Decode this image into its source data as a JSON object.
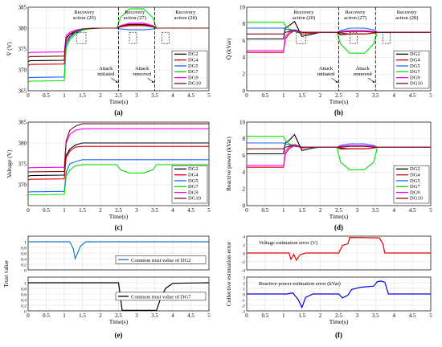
{
  "colors": {
    "DG2": "#000000",
    "DG4": "#e00000",
    "DG5": "#1464ff",
    "DG7": "#00e000",
    "DG9": "#ff00ff",
    "DG10": "#7a1010",
    "trust2": "#1f78c8",
    "trust7": "#000000",
    "verr": "#e00000",
    "qerr": "#0000e0"
  },
  "chart_data": [
    {
      "type": "line",
      "panel_label": "(a)",
      "xlabel": "Time(s)",
      "ylabel": "V̄ (V)",
      "xlim": [
        0,
        5
      ],
      "ylim": [
        365,
        385
      ],
      "xticks": [
        0,
        0.5,
        1,
        1.5,
        2,
        2.5,
        3,
        3.5,
        4,
        4.5,
        5
      ],
      "yticks": [
        365,
        370,
        375,
        380,
        385
      ],
      "grid": true,
      "legend_position": "right",
      "x": [
        0,
        0.05,
        1,
        1.05,
        1.15,
        1.3,
        1.5,
        1.8,
        2,
        2.45,
        2.55,
        2.8,
        3.2,
        3.45,
        3.55,
        3.8,
        4,
        5
      ],
      "series": [
        {
          "name": "DG2",
          "values": [
            372,
            372.2,
            372.3,
            377.5,
            378.5,
            379,
            379.6,
            379.9,
            380,
            380,
            380.5,
            380.9,
            380.9,
            380.5,
            380,
            380,
            380,
            380
          ]
        },
        {
          "name": "DG4",
          "values": [
            371,
            371.3,
            371.4,
            376.8,
            378,
            379,
            379.7,
            380,
            380,
            380,
            380.3,
            380.6,
            380.6,
            380.3,
            380,
            380,
            380,
            380
          ]
        },
        {
          "name": "DG5",
          "values": [
            368,
            368.2,
            368.3,
            376,
            377.7,
            378.9,
            379.7,
            380,
            380,
            380,
            379.8,
            379.6,
            379.6,
            379.8,
            380,
            380,
            380,
            380
          ]
        },
        {
          "name": "DG7",
          "values": [
            367,
            367.3,
            367.4,
            375.2,
            377.2,
            378.5,
            379.5,
            380,
            380,
            380,
            382.5,
            384.6,
            384.6,
            382.5,
            380,
            380,
            380,
            380
          ]
        },
        {
          "name": "DG9",
          "values": [
            374,
            374.2,
            374.3,
            378.2,
            379,
            379.5,
            379.8,
            380,
            380,
            380,
            380.6,
            381.2,
            381.2,
            380.6,
            380,
            380,
            380,
            380
          ]
        },
        {
          "name": "DG10",
          "values": [
            373,
            373.2,
            373.3,
            377.7,
            378.6,
            379.3,
            379.8,
            380,
            380,
            380,
            380.4,
            380.8,
            380.8,
            380.4,
            380,
            380,
            380,
            380
          ]
        }
      ],
      "annotations": [
        "Recovery action (20)",
        "Recovery action (27)",
        "Recovery action (28)",
        "Attack initiated",
        "Attack removed"
      ]
    },
    {
      "type": "line",
      "panel_label": "(b)",
      "xlabel": "Time(s)",
      "ylabel": "Q̄ (kVar)",
      "xlim": [
        0,
        5
      ],
      "ylim": [
        0,
        10
      ],
      "xticks": [
        0,
        0.5,
        1,
        1.5,
        2,
        2.5,
        3,
        3.5,
        4,
        4.5,
        5
      ],
      "yticks": [
        0,
        2,
        4,
        6,
        8,
        10
      ],
      "grid": true,
      "legend_position": "right",
      "x": [
        0,
        0.05,
        1,
        1.05,
        1.15,
        1.3,
        1.5,
        1.8,
        2,
        2.45,
        2.55,
        2.8,
        3.2,
        3.45,
        3.55,
        3.8,
        4,
        5
      ],
      "series": [
        {
          "name": "DG2",
          "values": [
            6.2,
            6.2,
            6.2,
            7.5,
            7.8,
            8.3,
            6.5,
            6.8,
            7,
            7,
            6.7,
            6.8,
            6.8,
            6.9,
            7,
            7,
            7,
            7
          ]
        },
        {
          "name": "DG4",
          "values": [
            4.6,
            4.6,
            4.6,
            6.2,
            6.8,
            7.2,
            6.8,
            6.9,
            7,
            7,
            6.9,
            6.8,
            6.8,
            6.9,
            7,
            7,
            7,
            7
          ]
        },
        {
          "name": "DG5",
          "values": [
            7.5,
            7.5,
            7.5,
            7.4,
            7.3,
            7.1,
            7,
            7,
            7,
            7,
            7.2,
            7.5,
            7.5,
            7.3,
            7,
            7,
            7,
            7
          ]
        },
        {
          "name": "DG7",
          "values": [
            8.2,
            8.2,
            8.2,
            7.8,
            7.4,
            7.2,
            7,
            7,
            7,
            7,
            5.6,
            4.5,
            4.5,
            5.6,
            7,
            7,
            7,
            7
          ]
        },
        {
          "name": "DG9",
          "values": [
            4.8,
            4.8,
            4.8,
            6.5,
            7,
            7.2,
            7,
            7,
            7,
            7,
            7.1,
            7.2,
            7.2,
            7.1,
            7,
            7,
            7,
            7
          ]
        },
        {
          "name": "DG10",
          "values": [
            6.8,
            6.8,
            6.8,
            7,
            7.1,
            7.3,
            7,
            7,
            7,
            7,
            7,
            7.1,
            7.1,
            7,
            7,
            7,
            7,
            7
          ]
        }
      ],
      "annotations": [
        "Recovery action (20)",
        "Recovery action (27)",
        "Recovery action (28)",
        "Attack initiated",
        "Attack removed"
      ]
    },
    {
      "type": "line",
      "panel_label": "(c)",
      "xlabel": "Time(s)",
      "ylabel": "Voltage (V)",
      "xlim": [
        0,
        5
      ],
      "ylim": [
        365,
        385
      ],
      "xticks": [
        0,
        0.5,
        1,
        1.5,
        2,
        2.5,
        3,
        3.5,
        4,
        4.5,
        5
      ],
      "yticks": [
        370,
        375,
        380,
        385
      ],
      "grid": true,
      "legend_position": "right",
      "x": [
        0,
        0.05,
        1,
        1.05,
        1.15,
        1.3,
        1.5,
        1.8,
        2,
        2.45,
        2.55,
        2.8,
        3.2,
        3.45,
        3.55,
        3.8,
        4,
        5
      ],
      "series": [
        {
          "name": "DG2",
          "values": [
            372,
            372.2,
            372.3,
            377,
            378.5,
            379.5,
            380,
            380,
            380,
            380,
            380,
            380,
            380,
            380,
            380,
            380,
            380,
            380
          ]
        },
        {
          "name": "DG4",
          "values": [
            371.2,
            371.3,
            371.4,
            376.5,
            378,
            379,
            379.2,
            379.2,
            379.2,
            379.2,
            379.2,
            379.2,
            379.2,
            379.2,
            379.2,
            379.2,
            379.2,
            379.2
          ]
        },
        {
          "name": "DG5",
          "values": [
            368.2,
            368.3,
            368.4,
            373,
            375,
            375.5,
            376,
            376,
            376,
            376,
            376,
            376,
            376,
            376,
            376,
            376,
            376,
            376
          ]
        },
        {
          "name": "DG7",
          "values": [
            367.5,
            367.6,
            367.7,
            372,
            373.5,
            374.5,
            374.8,
            374.8,
            374.8,
            374.8,
            373.6,
            372.8,
            372.8,
            373.6,
            374.8,
            374.8,
            374.8,
            374.8
          ]
        },
        {
          "name": "DG9",
          "values": [
            374,
            374.1,
            374.2,
            380,
            382,
            383,
            383.4,
            383.4,
            383.4,
            383.4,
            383.4,
            383.4,
            383.4,
            383.4,
            383.4,
            383.4,
            383.4,
            383.4
          ]
        },
        {
          "name": "DG10",
          "values": [
            373,
            373.1,
            373.2,
            380.5,
            383,
            384,
            384.6,
            384.6,
            384.6,
            384.6,
            384.6,
            384.6,
            384.6,
            384.6,
            384.6,
            384.6,
            384.6,
            384.6
          ]
        }
      ]
    },
    {
      "type": "line",
      "panel_label": "(d)",
      "xlabel": "Time(s)",
      "ylabel": "Reactive power (kVar)",
      "xlim": [
        0,
        5
      ],
      "ylim": [
        0,
        10
      ],
      "xticks": [
        0,
        0.5,
        1,
        1.5,
        2,
        2.5,
        3,
        3.5,
        4,
        4.5,
        5
      ],
      "yticks": [
        0,
        2,
        4,
        6,
        8,
        10
      ],
      "grid": true,
      "legend_position": "right",
      "x": [
        0,
        0.05,
        1,
        1.05,
        1.15,
        1.3,
        1.5,
        1.8,
        2,
        2.45,
        2.55,
        2.8,
        3.2,
        3.45,
        3.55,
        3.8,
        4,
        5
      ],
      "series": [
        {
          "name": "DG2",
          "values": [
            6.2,
            6.2,
            6.2,
            7.5,
            7.8,
            8.5,
            6.6,
            6.9,
            7,
            7,
            6.8,
            6.8,
            6.8,
            6.9,
            7,
            7,
            7,
            7
          ]
        },
        {
          "name": "DG4",
          "values": [
            4.6,
            4.6,
            4.6,
            6.2,
            6.8,
            7.2,
            6.9,
            7,
            7,
            7,
            6.9,
            6.8,
            6.8,
            6.9,
            7,
            7,
            7,
            7
          ]
        },
        {
          "name": "DG5",
          "values": [
            7.5,
            7.5,
            7.5,
            7.4,
            7.3,
            7.1,
            7,
            7,
            7,
            7,
            7.2,
            7.4,
            7.4,
            7.2,
            7,
            7,
            7,
            7
          ]
        },
        {
          "name": "DG7",
          "values": [
            8.3,
            8.3,
            8.3,
            7.8,
            7.4,
            7.2,
            7,
            7,
            7,
            7,
            5.2,
            4.3,
            4.3,
            5.2,
            7,
            7,
            7,
            7
          ]
        },
        {
          "name": "DG9",
          "values": [
            4.8,
            4.8,
            4.8,
            6.5,
            7,
            7.2,
            7,
            7,
            7,
            7,
            7.1,
            7.2,
            7.2,
            7.1,
            7,
            7,
            7,
            7
          ]
        },
        {
          "name": "DG10",
          "values": [
            6.8,
            6.8,
            6.8,
            7,
            7.1,
            7.3,
            7,
            7,
            7,
            7,
            7,
            7.1,
            7.1,
            7,
            7,
            7,
            7,
            7
          ]
        }
      ]
    },
    {
      "type": "line",
      "panel_label": "(e)",
      "xlabel": "Time(s)",
      "ylabel": "Trust value",
      "subplots": [
        {
          "xlim": [
            0,
            5
          ],
          "ylim": [
            0,
            1.2
          ],
          "yticks": [
            0,
            0.2,
            0.4,
            0.6,
            0.8,
            1
          ],
          "legend": "Common trust value of DG2",
          "x": [
            0,
            1.15,
            1.25,
            1.3,
            1.35,
            1.45,
            1.6,
            5
          ],
          "values": [
            1,
            1,
            0.75,
            0.4,
            0.55,
            0.85,
            1,
            1
          ]
        },
        {
          "xlim": [
            0,
            5
          ],
          "ylim": [
            0,
            1.2
          ],
          "yticks": [
            0,
            0.2,
            0.4,
            0.6,
            0.8,
            1
          ],
          "legend": "Common trust value of DG7",
          "x": [
            0,
            2.5,
            2.6,
            3.55,
            3.65,
            3.8,
            4,
            5
          ],
          "values": [
            1,
            1,
            0.02,
            0.02,
            0.4,
            0.8,
            0.98,
            1
          ]
        }
      ],
      "xticks": [
        0,
        0.5,
        1,
        1.5,
        2,
        2.5,
        3,
        3.5,
        4,
        4.5,
        5
      ]
    },
    {
      "type": "line",
      "panel_label": "(f)",
      "xlabel": "Time(s)",
      "ylabel": "Collective estimation error",
      "subplots": [
        {
          "xlim": [
            0,
            5
          ],
          "ylim": [
            -4,
            4
          ],
          "yticks": [
            -4,
            -2,
            0,
            2,
            4
          ],
          "annotation": "Voltage estimation error (V)",
          "x": [
            0,
            1.15,
            1.2,
            1.28,
            1.35,
            1.45,
            1.6,
            2.5,
            2.6,
            2.75,
            2.8,
            3.6,
            3.7,
            3.75,
            5
          ],
          "values": [
            0,
            0,
            -1.5,
            -0.3,
            -1.7,
            -0.4,
            0,
            0,
            1.8,
            2.2,
            3.7,
            3.6,
            2.2,
            0,
            0
          ]
        },
        {
          "xlim": [
            0,
            5
          ],
          "ylim": [
            -3,
            3
          ],
          "yticks": [
            -3,
            -2,
            -1,
            0,
            1,
            2,
            3
          ],
          "annotation": "Reactive power estimation error (kVar)",
          "x": [
            0,
            1.1,
            1.25,
            1.4,
            1.5,
            1.6,
            1.8,
            2.5,
            2.6,
            2.75,
            2.85,
            3.1,
            3.45,
            3.55,
            3.65,
            3.75,
            3.85,
            5
          ],
          "values": [
            0,
            0,
            0.2,
            -1,
            -2.4,
            -0.6,
            0,
            0,
            -0.7,
            -0.2,
            0.8,
            1.2,
            1.4,
            2.2,
            2.3,
            2.1,
            0,
            0
          ]
        }
      ],
      "xticks": [
        0,
        0.5,
        1,
        1.5,
        2,
        2.5,
        3,
        3.5,
        4,
        4.5,
        5
      ]
    }
  ]
}
